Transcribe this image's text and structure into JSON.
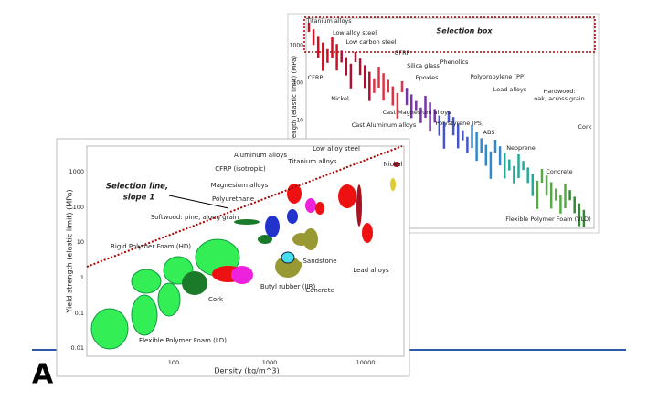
{
  "back_chart": {
    "annotation": "Selection box",
    "y_axis_label": "Yield strength (elastic limit) (MPa)",
    "y_ticks": [
      "1000",
      "100",
      "10"
    ],
    "labels": [
      "Titanium alloys",
      "Low alloy steel",
      "Low carbon steel",
      "CFRP",
      "Nickel",
      "GFRP",
      "Silica glass",
      "Phenolics",
      "Epoxies",
      "Polypropylene (PP)",
      "Lead alloys",
      "Cast Magnesium alloys",
      "Polystyrene (PS)",
      "Cast Aluminum alloys",
      "ABS",
      "Hardwood:",
      "oak, across grain",
      "Neoprene",
      "Cork",
      "Concrete",
      "Flexible Polymer Foam (VLD)"
    ]
  },
  "front_chart": {
    "annotation": [
      "Selection line,",
      "slope 1"
    ],
    "y_axis_label": "Yield strength (elastic limit) (MPa)",
    "x_axis_label": "Density (kg/m^3)",
    "y_ticks": [
      "1000",
      "100",
      "10",
      "1",
      "0.1",
      "0.01"
    ],
    "x_ticks": [
      "100",
      "1000",
      "10000"
    ],
    "labels": [
      "Aluminum alloys",
      "Low alloy steel",
      "CFRP (isotropic)",
      "Titanium alloys",
      "Nickel",
      "Magnesium alloys",
      "Polyurethane",
      "Softwood: pine, along grain",
      "Rigid Polymer Foam (HD)",
      "Sandstone",
      "Lead alloys",
      "Cork",
      "Butyl rubber (IIR)",
      "Concrete",
      "Flexible Polymer Foam (LD)"
    ]
  },
  "panel_label": "A"
}
